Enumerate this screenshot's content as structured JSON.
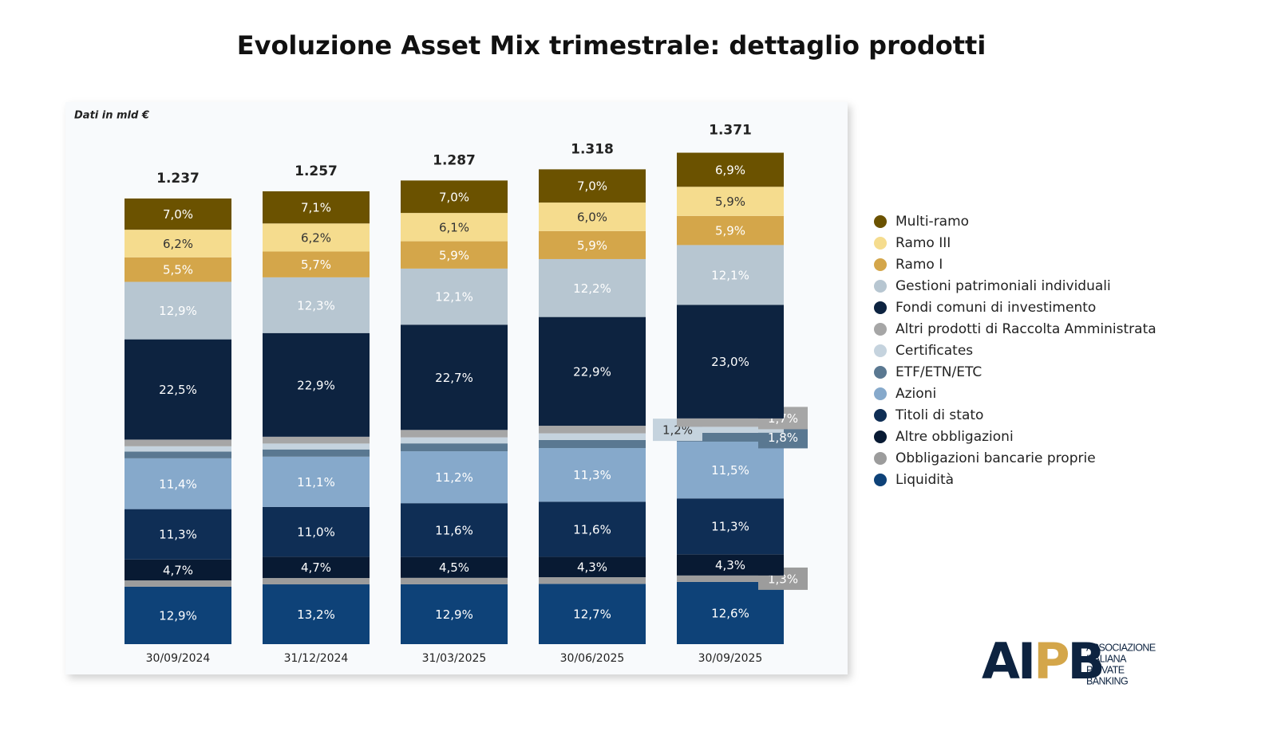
{
  "chart_data": {
    "type": "stacked_bar",
    "title": "Evoluzione Asset Mix trimestrale: dettaglio prodotti",
    "subtitle": "Dati in mld €",
    "categories": [
      "30/09/2024",
      "31/12/2024",
      "31/03/2025",
      "30/06/2025",
      "30/09/2025"
    ],
    "totals": {
      "values": [
        1237,
        1257,
        1287,
        1318,
        1371
      ],
      "value_labels": [
        "1.237",
        "1.257",
        "1.287",
        "1.318",
        "1.371"
      ]
    },
    "series": [
      {
        "name": "Liquidità",
        "color": "#0e4278",
        "values": [
          12.9,
          13.2,
          12.9,
          12.7,
          12.6
        ],
        "value_labels": [
          "12,9%",
          "13,2%",
          "12,9%",
          "12,7%",
          "12,6%"
        ]
      },
      {
        "name": "Obbligazioni bancarie proprie",
        "color": "#9c9c9c",
        "values": [
          1.4,
          1.4,
          1.4,
          1.4,
          1.3
        ],
        "value_labels": [
          null,
          null,
          null,
          null,
          "1,3%"
        ]
      },
      {
        "name": "Altre obbligazioni",
        "color": "#081a33",
        "values": [
          4.7,
          4.7,
          4.5,
          4.3,
          4.3
        ],
        "value_labels": [
          "4,7%",
          "4,7%",
          "4,5%",
          "4,3%",
          "4,3%"
        ]
      },
      {
        "name": "Titoli di stato",
        "color": "#0f2e55",
        "values": [
          11.3,
          11.0,
          11.6,
          11.6,
          11.3
        ],
        "value_labels": [
          "11,3%",
          "11,0%",
          "11,6%",
          "11,6%",
          "11,3%"
        ]
      },
      {
        "name": "Azioni",
        "color": "#86a9cb",
        "values": [
          11.4,
          11.1,
          11.2,
          11.3,
          11.5
        ],
        "value_labels": [
          "11,4%",
          "11,1%",
          "11,2%",
          "11,3%",
          "11,5%"
        ]
      },
      {
        "name": "ETF/ETN/ETC",
        "color": "#5a7891",
        "values": [
          1.5,
          1.6,
          1.7,
          1.7,
          1.8
        ],
        "value_labels": [
          null,
          null,
          null,
          null,
          "1,8%"
        ]
      },
      {
        "name": "Certificates",
        "color": "#c5d3de",
        "values": [
          1.2,
          1.3,
          1.3,
          1.4,
          1.2
        ],
        "value_labels": [
          null,
          null,
          null,
          null,
          "1,2%"
        ]
      },
      {
        "name": "Altri prodotti di Raccolta Amministrata",
        "color": "#a6a6a6",
        "values": [
          1.5,
          1.5,
          1.6,
          1.6,
          1.7
        ],
        "value_labels": [
          null,
          null,
          null,
          null,
          "1,7%"
        ]
      },
      {
        "name": "Fondi comuni di investimento",
        "color": "#0d2340",
        "values": [
          22.5,
          22.9,
          22.7,
          22.9,
          23.0
        ],
        "value_labels": [
          "22,5%",
          "22,9%",
          "22,7%",
          "22,9%",
          "23,0%"
        ]
      },
      {
        "name": "Gestioni patrimoniali individuali",
        "color": "#b7c6d1",
        "values": [
          12.9,
          12.3,
          12.1,
          12.2,
          12.1
        ],
        "value_labels": [
          "12,9%",
          "12,3%",
          "12,1%",
          "12,2%",
          "12,1%"
        ]
      },
      {
        "name": "Ramo I",
        "color": "#d4a64a",
        "values": [
          5.5,
          5.7,
          5.9,
          5.9,
          5.9
        ],
        "value_labels": [
          "5,5%",
          "5,7%",
          "5,9%",
          "5,9%",
          "5,9%"
        ]
      },
      {
        "name": "Ramo III",
        "color": "#f5dc8e",
        "values": [
          6.2,
          6.2,
          6.1,
          6.0,
          5.9
        ],
        "value_labels": [
          "6,2%",
          "6,2%",
          "6,1%",
          "6,0%",
          "5,9%"
        ]
      },
      {
        "name": "Multi-ramo",
        "color": "#6b5200",
        "values": [
          7.0,
          7.1,
          7.0,
          7.0,
          6.9
        ],
        "value_labels": [
          "7,0%",
          "7,1%",
          "7,0%",
          "7,0%",
          "6,9%"
        ]
      }
    ],
    "legend": "right"
  },
  "logo": {
    "mark": [
      "AI",
      "P",
      "B"
    ],
    "lines": [
      "ASSOCIAZIONE",
      "ITALIANA",
      "PRIVATE",
      "BANKING"
    ]
  }
}
